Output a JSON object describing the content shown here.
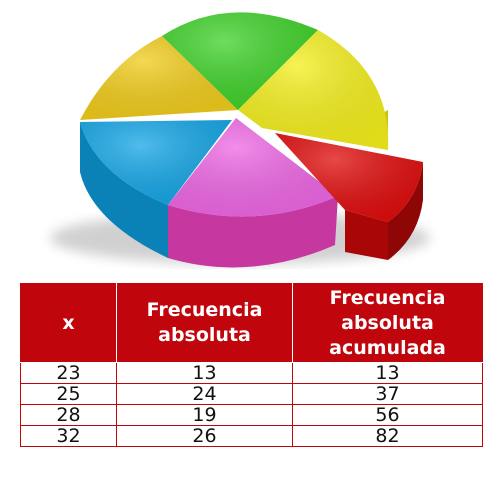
{
  "illustration": {
    "icon": "pie-chart-3d-icon",
    "slices": [
      {
        "name": "green",
        "color": "#3fd22a"
      },
      {
        "name": "yellow-right",
        "color": "#f4ef1c"
      },
      {
        "name": "red",
        "color": "#e00c0c"
      },
      {
        "name": "pink",
        "color": "#ee67e4"
      },
      {
        "name": "blue",
        "color": "#15a6e6"
      },
      {
        "name": "yellow-left",
        "color": "#f1cc1b"
      }
    ]
  },
  "table": {
    "header_color": "#c0050c",
    "headers": [
      {
        "lines": [
          "x"
        ]
      },
      {
        "lines": [
          "Frecuencia",
          "absoluta"
        ]
      },
      {
        "lines": [
          "Frecuencia",
          "absoluta",
          "acumulada"
        ]
      }
    ],
    "rows": [
      [
        "23",
        "13",
        "13"
      ],
      [
        "25",
        "24",
        "37"
      ],
      [
        "28",
        "19",
        "56"
      ],
      [
        "32",
        "26",
        "82"
      ]
    ]
  }
}
